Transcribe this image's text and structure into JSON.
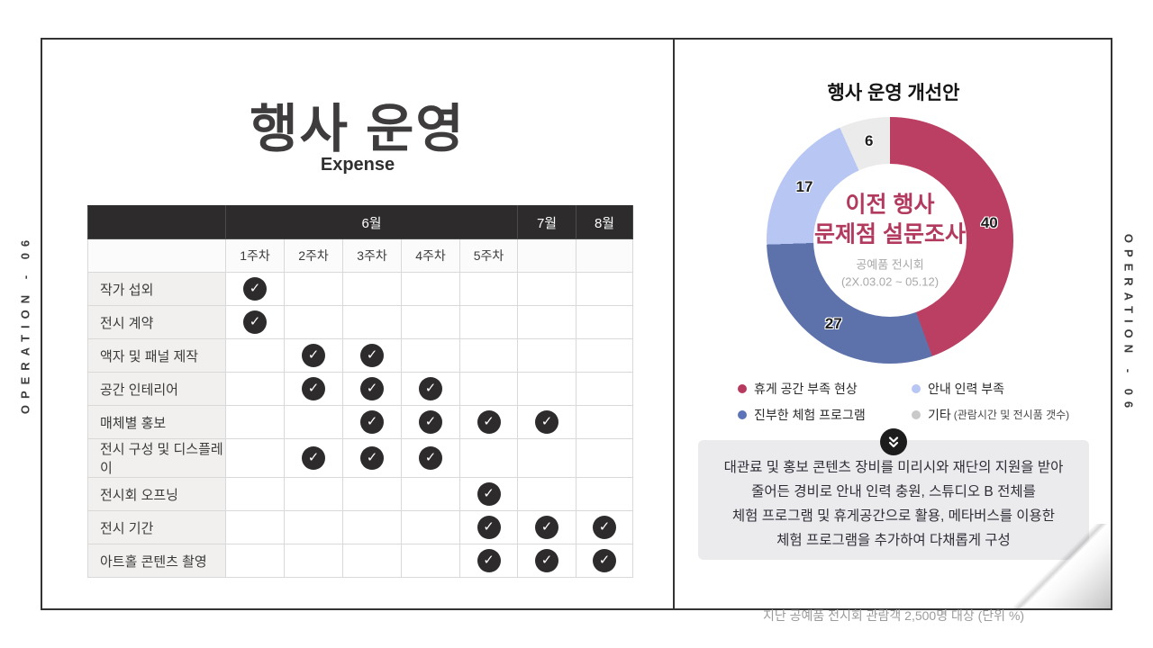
{
  "page": {
    "side_label_left": "OPERATION - 06",
    "side_label_right": "OPERATION - 06"
  },
  "left_panel": {
    "title": "행사 운영",
    "subtitle": "Expense",
    "schedule_table": {
      "month_headers": [
        {
          "label": "",
          "span": 1
        },
        {
          "label": "6월",
          "span": 5
        },
        {
          "label": "7월",
          "span": 1
        },
        {
          "label": "8월",
          "span": 1
        }
      ],
      "week_headers": [
        "",
        "1주차",
        "2주차",
        "3주차",
        "4주차",
        "5주차",
        "",
        ""
      ],
      "rows": [
        {
          "task": "작가 섭외",
          "checks": [
            1,
            0,
            0,
            0,
            0,
            0,
            0
          ]
        },
        {
          "task": "전시 계약",
          "checks": [
            1,
            0,
            0,
            0,
            0,
            0,
            0
          ]
        },
        {
          "task": "액자 및 패널 제작",
          "checks": [
            0,
            1,
            1,
            0,
            0,
            0,
            0
          ]
        },
        {
          "task": "공간 인테리어",
          "checks": [
            0,
            1,
            1,
            1,
            0,
            0,
            0
          ]
        },
        {
          "task": "매체별 홍보",
          "checks": [
            0,
            0,
            1,
            1,
            1,
            1,
            0
          ]
        },
        {
          "task": "전시 구성 및 디스플레이",
          "checks": [
            0,
            1,
            1,
            1,
            0,
            0,
            0
          ]
        },
        {
          "task": "전시회 오프닝",
          "checks": [
            0,
            0,
            0,
            0,
            1,
            0,
            0
          ]
        },
        {
          "task": "전시 기간",
          "checks": [
            0,
            0,
            0,
            0,
            1,
            1,
            1
          ]
        },
        {
          "task": "아트홀 콘텐츠 촬영",
          "checks": [
            0,
            0,
            0,
            0,
            1,
            1,
            1
          ]
        }
      ]
    }
  },
  "right_panel": {
    "title": "행사 운영 개선안",
    "chart_data": {
      "type": "pie",
      "donut": true,
      "title": "행사 운영 개선안",
      "center_title_line1": "이전 행사",
      "center_title_line2": "문제점 설문조사",
      "center_subtitle": "공예품 전시회",
      "center_period": "(2X.03.02 ~ 05.12)",
      "unit": "%",
      "slices": [
        {
          "label": "휴게 공간 부족 현상",
          "value": 40,
          "color": "#bb3f63"
        },
        {
          "label": "진부한 체험 프로그램",
          "value": 27,
          "color": "#5d72ab"
        },
        {
          "label": "안내 인력 부족",
          "value": 17,
          "color": "#b7c6f3"
        },
        {
          "label": "기타 (관람시간 및 전시품 갯수)",
          "value": 6,
          "color": "#ebebeb"
        }
      ]
    },
    "legend": [
      {
        "label": "휴게 공간 부족 현상",
        "note": "",
        "color": "#b73a5e"
      },
      {
        "label": "안내 인력 부족",
        "note": "",
        "color": "#b7c6f3"
      },
      {
        "label": "진부한 체험 프로그램",
        "note": "",
        "color": "#5e74b8"
      },
      {
        "label": "기타",
        "note": "(관람시간 및 전시품 갯수)",
        "color": "#c9c9c9"
      }
    ],
    "callout": {
      "lines": [
        "대관료 및 홍보 콘텐츠 장비를 미리시와 재단의 지원을 받아",
        "줄어든 경비로 안내 인력 충원, 스튜디오 B 전체를",
        "체험 프로그램 및 휴게공간으로 활용, 메타버스를 이용한",
        "체험 프로그램을 추가하여 다채롭게 구성"
      ]
    },
    "footnote": "지난 공예품 전시회 관람객 2,500명 대상 (단위 %)"
  },
  "colors": {
    "header_dark": "#2d2b2c",
    "accent_red": "#bb3f63",
    "accent_blue": "#5d72ab",
    "accent_lightblue": "#b7c6f3",
    "accent_gray": "#ebebeb"
  }
}
